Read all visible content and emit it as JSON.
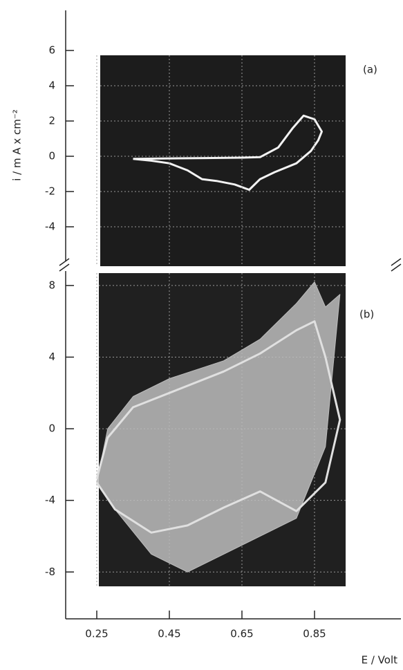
{
  "chart_data": [
    {
      "type": "line",
      "panel_label": "(a)",
      "ylabel": "i / m A x cm⁻²",
      "xlim": [
        0.15,
        1.05
      ],
      "ylim": [
        -6,
        8
      ],
      "yticks": [
        6,
        4,
        2,
        0,
        -2,
        -4
      ],
      "grid": true,
      "x": [
        0.35,
        0.45,
        0.55,
        0.65,
        0.7,
        0.75,
        0.79,
        0.82,
        0.85,
        0.87,
        0.86,
        0.84,
        0.8,
        0.74,
        0.7,
        0.67,
        0.63,
        0.58,
        0.54,
        0.5,
        0.45,
        0.4,
        0.35
      ],
      "series": [
        {
          "color": "#f2f2f2",
          "values": [
            -0.15,
            -0.12,
            -0.1,
            -0.08,
            -0.05,
            0.5,
            1.6,
            2.3,
            2.1,
            1.4,
            0.9,
            0.3,
            -0.4,
            -0.9,
            -1.3,
            -1.9,
            -1.6,
            -1.4,
            -1.3,
            -0.8,
            -0.4,
            -0.25,
            -0.15
          ]
        }
      ]
    },
    {
      "type": "line",
      "panel_label": "(b)",
      "xlabel": "E / Volt",
      "xlim": [
        0.15,
        1.05
      ],
      "ylim": [
        -10.5,
        9
      ],
      "yticks": [
        8,
        4,
        0,
        -4,
        -8
      ],
      "xticks": [
        0.25,
        0.45,
        0.65,
        0.85
      ],
      "grid": true,
      "x": [
        0.25,
        0.3,
        0.4,
        0.5,
        0.6,
        0.7,
        0.8,
        0.88,
        0.92,
        0.88,
        0.85,
        0.8,
        0.7,
        0.6,
        0.45,
        0.35,
        0.28,
        0.25
      ],
      "series": [
        {
          "color": "#bdbdbd",
          "fill": true,
          "values": [
            -3,
            -4.5,
            -7,
            -8,
            -7,
            -6,
            -5,
            -1,
            7.5,
            6.8,
            8.2,
            7,
            5,
            3.8,
            2.8,
            1.8,
            0,
            -3
          ]
        },
        {
          "color": "#e0e0e0",
          "fill": false,
          "values": [
            -3,
            -4.5,
            -5.8,
            -5.4,
            -4.4,
            -3.5,
            -4.6,
            -3,
            0.5,
            4,
            6,
            5.5,
            4.2,
            3.2,
            2,
            1.2,
            -0.5,
            -2.8
          ]
        }
      ]
    }
  ]
}
